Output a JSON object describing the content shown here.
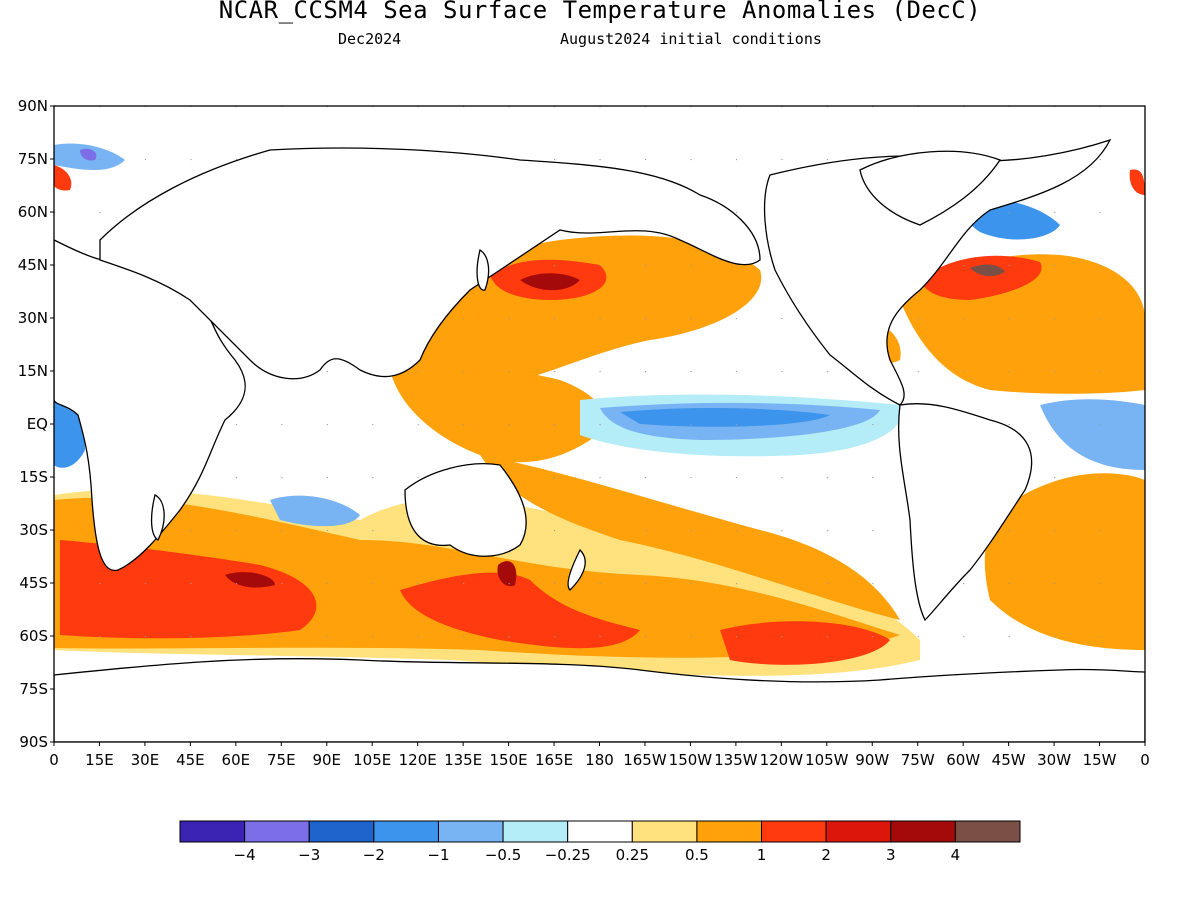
{
  "title": "NCAR_CCSM4 Sea Surface Temperature Anomalies (DecC)",
  "subtitle_valid": "Dec2024",
  "subtitle_init": "August2024 initial conditions",
  "lat_labels": [
    "90N",
    "75N",
    "60N",
    "45N",
    "30N",
    "15N",
    "EQ",
    "15S",
    "30S",
    "45S",
    "60S",
    "75S",
    "90S"
  ],
  "lon_labels": [
    "0",
    "15E",
    "30E",
    "45E",
    "60E",
    "75E",
    "90E",
    "105E",
    "120E",
    "135E",
    "150E",
    "165E",
    "180",
    "165W",
    "150W",
    "135W",
    "120W",
    "105W",
    "90W",
    "75W",
    "60W",
    "45W",
    "30W",
    "15W",
    "0"
  ],
  "colorbar": {
    "colors": [
      "#3b23b3",
      "#7c6ee6",
      "#1f63cd",
      "#3d94ec",
      "#78b4f3",
      "#b4ecf7",
      "#ffffff",
      "#ffe27d",
      "#ffa10a",
      "#ff3a0e",
      "#dc160a",
      "#a50a0a",
      "#7a5046"
    ],
    "labels": [
      "−4",
      "−3",
      "−2",
      "−1",
      "−0.5",
      "−0.25",
      "0.25",
      "0.5",
      "1",
      "2",
      "3",
      "4"
    ]
  }
}
